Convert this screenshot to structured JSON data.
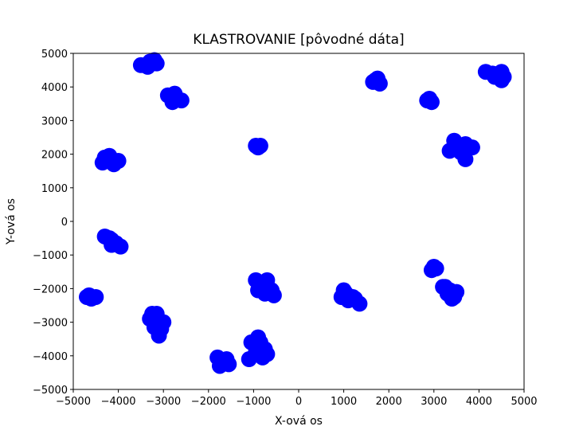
{
  "chart_data": {
    "type": "scatter",
    "title": "KLASTROVANIE  [pôvodné dáta]",
    "xlabel": "X-ová os",
    "ylabel": "Y-ová os",
    "xlim": [
      -5000,
      5000
    ],
    "ylim": [
      -5000,
      5000
    ],
    "x_ticks": [
      -5000,
      -4000,
      -3000,
      -2000,
      -1000,
      0,
      1000,
      2000,
      3000,
      4000,
      5000
    ],
    "y_ticks": [
      -5000,
      -4000,
      -3000,
      -2000,
      -1000,
      0,
      1000,
      2000,
      3000,
      4000,
      5000
    ],
    "x_tick_labels": [
      "−5000",
      "−4000",
      "−3000",
      "−2000",
      "−1000",
      "0",
      "1000",
      "2000",
      "3000",
      "4000",
      "5000"
    ],
    "y_tick_labels": [
      "−5000",
      "−4000",
      "−3000",
      "−2000",
      "−1000",
      "0",
      "1000",
      "2000",
      "3000",
      "4000",
      "5000"
    ],
    "grid": false,
    "marker_color": "#0000ff",
    "series": [
      {
        "points": [
          [
            -3300,
            4750
          ],
          [
            -3500,
            4650
          ],
          [
            -3150,
            4700
          ],
          [
            -3350,
            4600
          ],
          [
            -3200,
            4800
          ],
          [
            -2900,
            3750
          ],
          [
            -2750,
            3800
          ],
          [
            -2600,
            3600
          ],
          [
            -2800,
            3550
          ],
          [
            -2700,
            3650
          ],
          [
            -4300,
            1900
          ],
          [
            -4150,
            1850
          ],
          [
            -4000,
            1800
          ],
          [
            -4350,
            1750
          ],
          [
            -4100,
            1700
          ],
          [
            -4200,
            1950
          ],
          [
            -950,
            2250
          ],
          [
            -850,
            2250
          ],
          [
            -900,
            2200
          ],
          [
            -4300,
            -450
          ],
          [
            -4150,
            -550
          ],
          [
            -4050,
            -650
          ],
          [
            -3950,
            -750
          ],
          [
            -4150,
            -700
          ],
          [
            -4200,
            -500
          ],
          [
            -4700,
            -2250
          ],
          [
            -4600,
            -2300
          ],
          [
            -4500,
            -2250
          ],
          [
            -4650,
            -2200
          ],
          [
            -3300,
            -2900
          ],
          [
            -3150,
            -2750
          ],
          [
            -3000,
            -3000
          ],
          [
            -3200,
            -3150
          ],
          [
            -3100,
            -3400
          ],
          [
            -3050,
            -3200
          ],
          [
            -3250,
            -2750
          ],
          [
            -1800,
            -4050
          ],
          [
            -1650,
            -4200
          ],
          [
            -1550,
            -4250
          ],
          [
            -1750,
            -4300
          ],
          [
            -1600,
            -4100
          ],
          [
            -1100,
            -4100
          ],
          [
            -950,
            -3900
          ],
          [
            -850,
            -3600
          ],
          [
            -750,
            -3800
          ],
          [
            -700,
            -3950
          ],
          [
            -800,
            -4050
          ],
          [
            -1050,
            -3600
          ],
          [
            -900,
            -3450
          ],
          [
            -950,
            -1750
          ],
          [
            -800,
            -1900
          ],
          [
            -700,
            -1750
          ],
          [
            -600,
            -2050
          ],
          [
            -750,
            -2150
          ],
          [
            -900,
            -2050
          ],
          [
            -550,
            -2200
          ],
          [
            1000,
            -2050
          ],
          [
            950,
            -2250
          ],
          [
            1100,
            -2350
          ],
          [
            1250,
            -2300
          ],
          [
            1350,
            -2450
          ],
          [
            1050,
            -2150
          ],
          [
            1200,
            -2250
          ],
          [
            1650,
            4150
          ],
          [
            1750,
            4250
          ],
          [
            1800,
            4100
          ],
          [
            1700,
            4200
          ],
          [
            2850,
            3600
          ],
          [
            2950,
            3550
          ],
          [
            2900,
            3650
          ],
          [
            3350,
            2100
          ],
          [
            3500,
            2300
          ],
          [
            3600,
            2050
          ],
          [
            3700,
            2300
          ],
          [
            3850,
            2200
          ],
          [
            3550,
            2150
          ],
          [
            3700,
            1850
          ],
          [
            3450,
            2400
          ],
          [
            2950,
            -1450
          ],
          [
            3000,
            -1350
          ],
          [
            3050,
            -1400
          ],
          [
            3200,
            -1950
          ],
          [
            3350,
            -2050
          ],
          [
            3450,
            -2250
          ],
          [
            3500,
            -2100
          ],
          [
            3300,
            -2150
          ],
          [
            3400,
            -2300
          ],
          [
            3250,
            -1950
          ],
          [
            4150,
            4450
          ],
          [
            4300,
            4400
          ],
          [
            4450,
            4350
          ],
          [
            4550,
            4300
          ],
          [
            4500,
            4200
          ],
          [
            4350,
            4300
          ],
          [
            4500,
            4450
          ]
        ]
      }
    ]
  }
}
